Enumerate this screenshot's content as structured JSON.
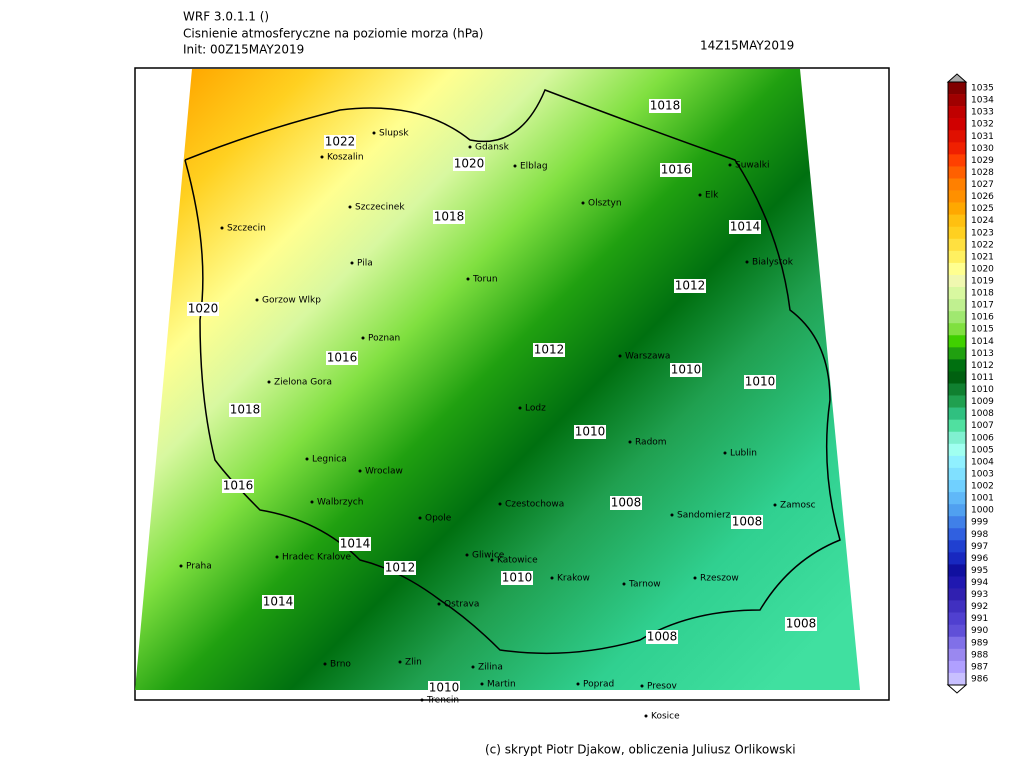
{
  "header": {
    "model": "WRF 3.0.1.1 ()",
    "title": "Cisnienie atmosferyczne na poziomie morza (hPa)",
    "init": "Init: 00Z15MAY2019",
    "valid": "14Z15MAY2019"
  },
  "footer": "(c) skrypt Piotr Djakow, obliczenia Juliusz Orlikowski",
  "cities": [
    "Slupsk",
    "Koszalin",
    "Gdansk",
    "Elblag",
    "Suwalki",
    "Szczecinek",
    "Olsztyn",
    "Elk",
    "Szczecin",
    "Pila",
    "Torun",
    "Bialystok",
    "Gorzow Wlkp",
    "Poznan",
    "Warszawa",
    "Zielona Gora",
    "Lodz",
    "Radom",
    "Lublin",
    "Legnica",
    "Wroclaw",
    "Walbrzych",
    "Opole",
    "Czestochowa",
    "Sandomierz",
    "Zamosc",
    "Hradec Kralove",
    "Gliwice",
    "Katowice",
    "Krakow",
    "Tarnow",
    "Rzeszow",
    "Praha",
    "Ostrava",
    "Brno",
    "Zilina",
    "Zlin",
    "Martin",
    "Poprad",
    "Presov",
    "Trencin",
    "Kosice"
  ],
  "contour_labels": [
    1022,
    1020,
    1018,
    1016,
    1018,
    1014,
    1012,
    1020,
    1016,
    1012,
    1010,
    1010,
    1018,
    1010,
    1016,
    1008,
    1008,
    1014,
    1012,
    1010,
    1014,
    1008,
    1008,
    1010
  ],
  "colorbar": {
    "levels": [
      1035,
      1034,
      1033,
      1032,
      1031,
      1030,
      1029,
      1028,
      1027,
      1026,
      1025,
      1024,
      1023,
      1022,
      1021,
      1020,
      1019,
      1018,
      1017,
      1016,
      1015,
      1014,
      1013,
      1012,
      1011,
      1010,
      1009,
      1008,
      1007,
      1006,
      1005,
      1004,
      1003,
      1002,
      1001,
      1000,
      999,
      998,
      997,
      996,
      995,
      994,
      993,
      992,
      991,
      990,
      989,
      988,
      987,
      986
    ],
    "colors": [
      "#800000",
      "#a00000",
      "#c00000",
      "#d00000",
      "#e01000",
      "#f02000",
      "#ff4000",
      "#ff6000",
      "#ff8000",
      "#ff9000",
      "#ffa800",
      "#ffc010",
      "#ffd020",
      "#ffe040",
      "#fff060",
      "#ffff90",
      "#f0f8b0",
      "#d8f8a0",
      "#c0f090",
      "#a0e870",
      "#80e040",
      "#40d000",
      "#20a010",
      "#007010",
      "#006010",
      "#108030",
      "#20a050",
      "#30c080",
      "#50e0a0",
      "#80f0d0",
      "#a0fff0",
      "#90f0ff",
      "#80e0ff",
      "#70d0ff",
      "#60b8f8",
      "#50a0f0",
      "#4080e8",
      "#3060e0",
      "#2040d0",
      "#1828c0",
      "#1010a0",
      "#2018b0",
      "#3020b0",
      "#4030c0",
      "#5040d0",
      "#6050d8",
      "#8070e8",
      "#9a88f0",
      "#b0a0ff",
      "#c8c0ff"
    ]
  }
}
